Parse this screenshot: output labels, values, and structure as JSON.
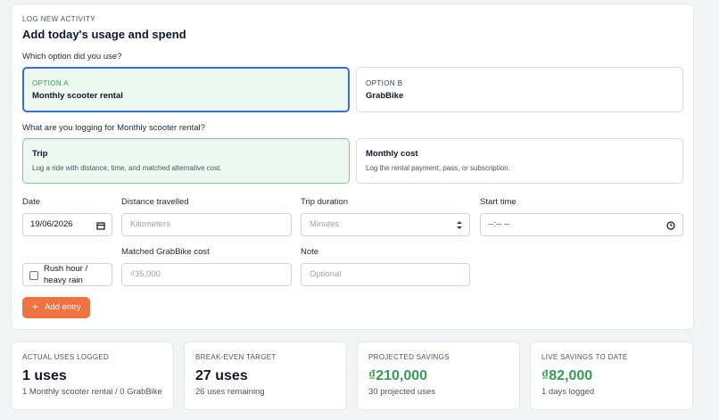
{
  "header": {
    "eyebrow": "LOG NEW ACTIVITY",
    "title": "Add today's usage and spend"
  },
  "option_question": "Which option did you use?",
  "options": [
    {
      "tag": "OPTION A",
      "name": "Monthly scooter rental"
    },
    {
      "tag": "OPTION B",
      "name": "GrabBike"
    }
  ],
  "log_question": "What are you logging for Monthly scooter rental?",
  "log_types": [
    {
      "title": "Trip",
      "description": "Log a ride with distance, time, and matched alternative cost."
    },
    {
      "title": "Monthly cost",
      "description": "Log the rental payment, pass, or subscription."
    }
  ],
  "fields": {
    "date": {
      "label": "Date",
      "value": "19/06/2026"
    },
    "distance": {
      "label": "Distance travelled",
      "placeholder": "Kilometers"
    },
    "duration": {
      "label": "Trip duration",
      "placeholder": "Minutes"
    },
    "start_time": {
      "label": "Start time",
      "value": "--:-- --"
    },
    "rush_hour": {
      "label": "Rush hour / heavy rain"
    },
    "grab_cost": {
      "label": "Matched GrabBike cost",
      "placeholder": "₫35,000"
    },
    "note": {
      "label": "Note",
      "placeholder": "Optional"
    }
  },
  "button": {
    "icon": "+",
    "label": "Add entry"
  },
  "stats": [
    {
      "label": "ACTUAL USES LOGGED",
      "value": "1 uses",
      "detail": "1 Monthly scooter rental / 0 GrabBike"
    },
    {
      "label": "BREAK-EVEN TARGET",
      "value": "27 uses",
      "detail": "26 uses remaining"
    },
    {
      "label": "PROJECTED SAVINGS",
      "value": "₫210,000",
      "detail": "30 projected uses"
    },
    {
      "label": "LIVE SAVINGS TO DATE",
      "value": "₫82,000",
      "detail": "1 days logged"
    }
  ]
}
